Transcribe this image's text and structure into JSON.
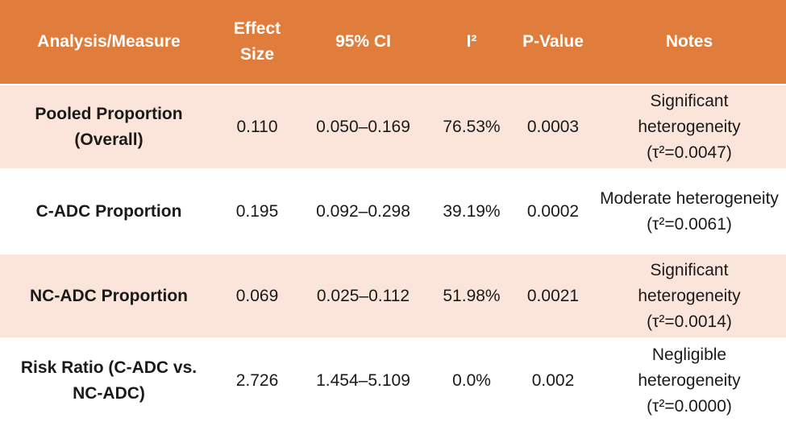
{
  "table": {
    "header": [
      "Analysis/Measure",
      "Effect Size",
      "95% CI",
      "I²",
      "P-Value",
      "Notes"
    ],
    "rows": [
      [
        "Pooled Proportion (Overall)",
        "0.110",
        "0.050–0.169",
        "76.53%",
        "0.0003",
        "Significant heterogeneity (τ²=0.0047)"
      ],
      [
        "C-ADC Proportion",
        "0.195",
        "0.092–0.298",
        "39.19%",
        "0.0002",
        "Moderate heterogeneity (τ²=0.0061)"
      ],
      [
        "NC-ADC Proportion",
        "0.069",
        "0.025–0.112",
        "51.98%",
        "0.0021",
        "Significant heterogeneity (τ²=0.0014)"
      ],
      [
        "Risk Ratio (C-ADC vs. NC-ADC)",
        "2.726",
        "1.454–5.109",
        "0.0%",
        "0.002",
        "Negligible heterogeneity (τ²=0.0000)"
      ]
    ]
  }
}
